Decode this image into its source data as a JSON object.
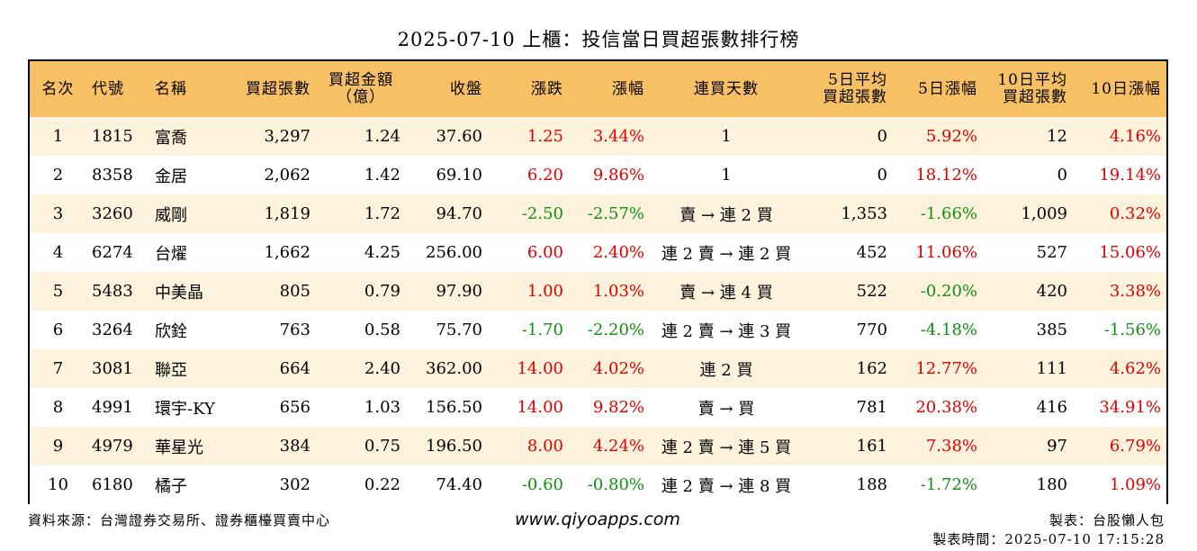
{
  "title": "2025-07-10 上櫃：投信當日買超張數排行榜",
  "colors": {
    "header_bg": "#f7c064",
    "row_alt_bg": "#fdf2dc",
    "up": "#e00000",
    "down": "#118f11"
  },
  "headers": {
    "rank": "名次",
    "code": "代號",
    "name": "名稱",
    "buy_lots": "買超張數",
    "amount_l1": "買超金額",
    "amount_l2": "（億）",
    "close": "收盤",
    "change": "漲跌",
    "pct": "漲幅",
    "streak": "連買天數",
    "avg5_l1": "5日平均",
    "avg5_l2": "買超張數",
    "pct5": "5日漲幅",
    "avg10_l1": "10日平均",
    "avg10_l2": "買超張數",
    "pct10": "10日漲幅"
  },
  "rows": [
    {
      "rank": "1",
      "code": "1815",
      "name": "富喬",
      "buy_lots": "3,297",
      "amount": "1.24",
      "close": "37.60",
      "change": "1.25",
      "pct": "3.44%",
      "streak": "1",
      "avg5": "0",
      "pct5": "5.92%",
      "avg10": "12",
      "pct10": "4.16%"
    },
    {
      "rank": "2",
      "code": "8358",
      "name": "金居",
      "buy_lots": "2,062",
      "amount": "1.42",
      "close": "69.10",
      "change": "6.20",
      "pct": "9.86%",
      "streak": "1",
      "avg5": "0",
      "pct5": "18.12%",
      "avg10": "0",
      "pct10": "19.14%"
    },
    {
      "rank": "3",
      "code": "3260",
      "name": "威剛",
      "buy_lots": "1,819",
      "amount": "1.72",
      "close": "94.70",
      "change": "-2.50",
      "pct": "-2.57%",
      "streak": "賣 → 連 2 買",
      "avg5": "1,353",
      "pct5": "-1.66%",
      "avg10": "1,009",
      "pct10": "0.32%"
    },
    {
      "rank": "4",
      "code": "6274",
      "name": "台燿",
      "buy_lots": "1,662",
      "amount": "4.25",
      "close": "256.00",
      "change": "6.00",
      "pct": "2.40%",
      "streak": "連 2 賣 → 連 2 買",
      "avg5": "452",
      "pct5": "11.06%",
      "avg10": "527",
      "pct10": "15.06%"
    },
    {
      "rank": "5",
      "code": "5483",
      "name": "中美晶",
      "buy_lots": "805",
      "amount": "0.79",
      "close": "97.90",
      "change": "1.00",
      "pct": "1.03%",
      "streak": "賣 → 連 4 買",
      "avg5": "522",
      "pct5": "-0.20%",
      "avg10": "420",
      "pct10": "3.38%"
    },
    {
      "rank": "6",
      "code": "3264",
      "name": "欣銓",
      "buy_lots": "763",
      "amount": "0.58",
      "close": "75.70",
      "change": "-1.70",
      "pct": "-2.20%",
      "streak": "連 2 賣 → 連 3 買",
      "avg5": "770",
      "pct5": "-4.18%",
      "avg10": "385",
      "pct10": "-1.56%"
    },
    {
      "rank": "7",
      "code": "3081",
      "name": "聯亞",
      "buy_lots": "664",
      "amount": "2.40",
      "close": "362.00",
      "change": "14.00",
      "pct": "4.02%",
      "streak": "連 2 買",
      "avg5": "162",
      "pct5": "12.77%",
      "avg10": "111",
      "pct10": "4.62%"
    },
    {
      "rank": "8",
      "code": "4991",
      "name": "環宇-KY",
      "buy_lots": "656",
      "amount": "1.03",
      "close": "156.50",
      "change": "14.00",
      "pct": "9.82%",
      "streak": "賣 → 買",
      "avg5": "781",
      "pct5": "20.38%",
      "avg10": "416",
      "pct10": "34.91%"
    },
    {
      "rank": "9",
      "code": "4979",
      "name": "華星光",
      "buy_lots": "384",
      "amount": "0.75",
      "close": "196.50",
      "change": "8.00",
      "pct": "4.24%",
      "streak": "連 2 賣 → 連 5 買",
      "avg5": "161",
      "pct5": "7.38%",
      "avg10": "97",
      "pct10": "6.79%"
    },
    {
      "rank": "10",
      "code": "6180",
      "name": "橘子",
      "buy_lots": "302",
      "amount": "0.22",
      "close": "74.40",
      "change": "-0.60",
      "pct": "-0.80%",
      "streak": "連 2 賣 → 連 8 買",
      "avg5": "188",
      "pct5": "-1.72%",
      "avg10": "180",
      "pct10": "1.09%"
    }
  ],
  "footer": {
    "source": "資料來源：台灣證券交易所、證券櫃檯買賣中心",
    "website": "www.qiyoapps.com",
    "author": "製表：台股懶人包",
    "time": "製表時間：2025-07-10 17:15:28"
  }
}
